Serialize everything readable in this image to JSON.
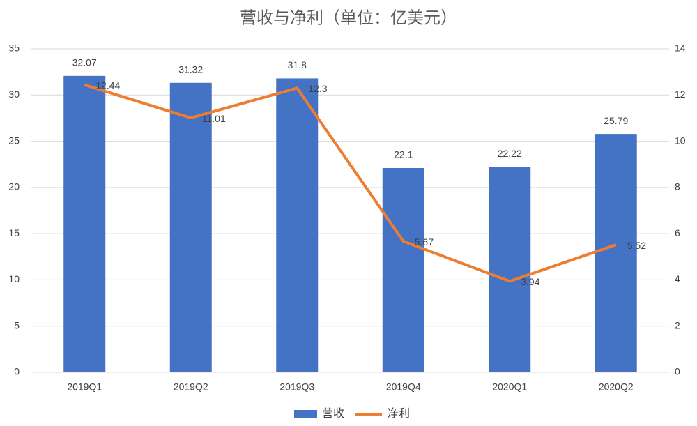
{
  "chart_data": {
    "type": "combo",
    "title": "营收与净利（单位：亿美元）",
    "categories": [
      "2019Q1",
      "2019Q2",
      "2019Q3",
      "2019Q4",
      "2020Q1",
      "2020Q2"
    ],
    "series": [
      {
        "name": "营收",
        "type": "bar",
        "color": "#4472c4",
        "values": [
          32.07,
          31.32,
          31.8,
          22.1,
          22.22,
          25.79
        ]
      },
      {
        "name": "净利",
        "type": "line",
        "axis": "y2",
        "color": "#ed7d31",
        "values": [
          12.44,
          11.01,
          12.3,
          5.67,
          3.94,
          5.52
        ]
      }
    ],
    "ylim": [
      0,
      35
    ],
    "yticks": [
      0,
      5,
      10,
      15,
      20,
      25,
      30,
      35
    ],
    "y2lim": [
      0,
      14
    ],
    "y2ticks": [
      0,
      2,
      4,
      6,
      8,
      10,
      12,
      14
    ],
    "grid": true,
    "legend": "bottom"
  }
}
